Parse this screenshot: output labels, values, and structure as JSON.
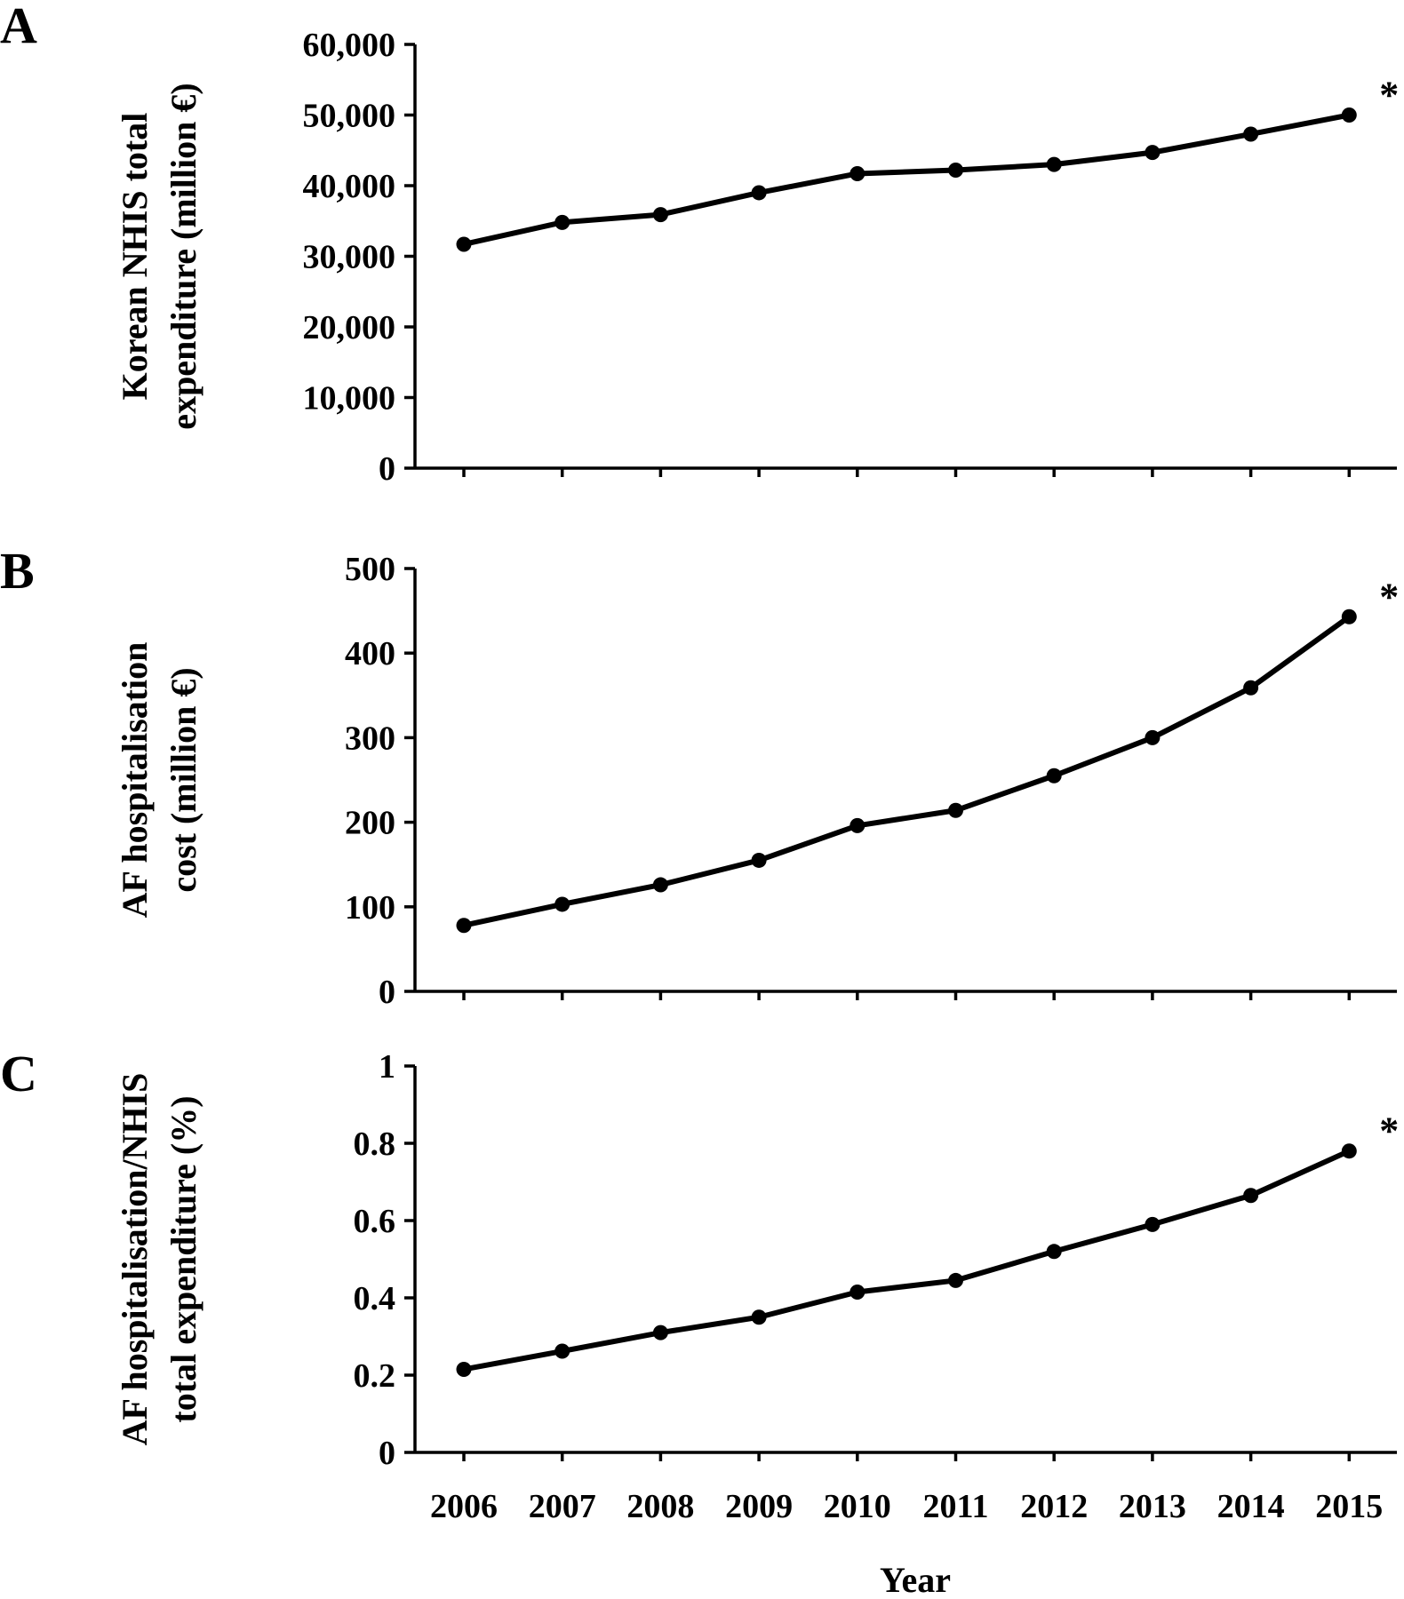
{
  "chart_data": [
    {
      "type": "line",
      "panel": "A",
      "ylabel_lines": [
        "Korean NHIS total",
        "expenditure (million €)"
      ],
      "x": [
        "2006",
        "2007",
        "2008",
        "2009",
        "2010",
        "2011",
        "2012",
        "2013",
        "2014",
        "2015"
      ],
      "values": [
        31700,
        34800,
        35900,
        39000,
        41700,
        42200,
        43000,
        44700,
        47300,
        50000
      ],
      "ylim": [
        0,
        60000
      ],
      "yticks": [
        0,
        10000,
        20000,
        30000,
        40000,
        50000,
        60000
      ],
      "ytick_labels": [
        "0",
        "10,000",
        "20,000",
        "30,000",
        "40,000",
        "50,000",
        "60,000"
      ],
      "annotation": "*",
      "grid": false
    },
    {
      "type": "line",
      "panel": "B",
      "ylabel_lines": [
        "AF hospitalisation",
        "cost (million €)"
      ],
      "x": [
        "2006",
        "2007",
        "2008",
        "2009",
        "2010",
        "2011",
        "2012",
        "2013",
        "2014",
        "2015"
      ],
      "values": [
        78,
        103,
        126,
        155,
        196,
        214,
        255,
        300,
        359,
        443
      ],
      "ylim": [
        0,
        500
      ],
      "yticks": [
        0,
        100,
        200,
        300,
        400,
        500
      ],
      "ytick_labels": [
        "0",
        "100",
        "200",
        "300",
        "400",
        "500"
      ],
      "annotation": "*",
      "grid": false
    },
    {
      "type": "line",
      "panel": "C",
      "ylabel_lines": [
        "AF hospitalisation/NHIS",
        "total expenditure (%)"
      ],
      "x": [
        "2006",
        "2007",
        "2008",
        "2009",
        "2010",
        "2011",
        "2012",
        "2013",
        "2014",
        "2015"
      ],
      "values": [
        0.215,
        0.262,
        0.31,
        0.35,
        0.415,
        0.445,
        0.52,
        0.59,
        0.665,
        0.78
      ],
      "ylim": [
        0,
        1
      ],
      "yticks": [
        0,
        0.2,
        0.4,
        0.6,
        0.8,
        1
      ],
      "ytick_labels": [
        "0",
        "0.2",
        "0.4",
        "0.6",
        "0.8",
        "1"
      ],
      "annotation": "*",
      "grid": false
    }
  ],
  "xaxis": {
    "tick_labels": [
      "2006",
      "2007",
      "2008",
      "2009",
      "2010",
      "2011",
      "2012",
      "2013",
      "2014",
      "2015"
    ],
    "title": "Year"
  }
}
